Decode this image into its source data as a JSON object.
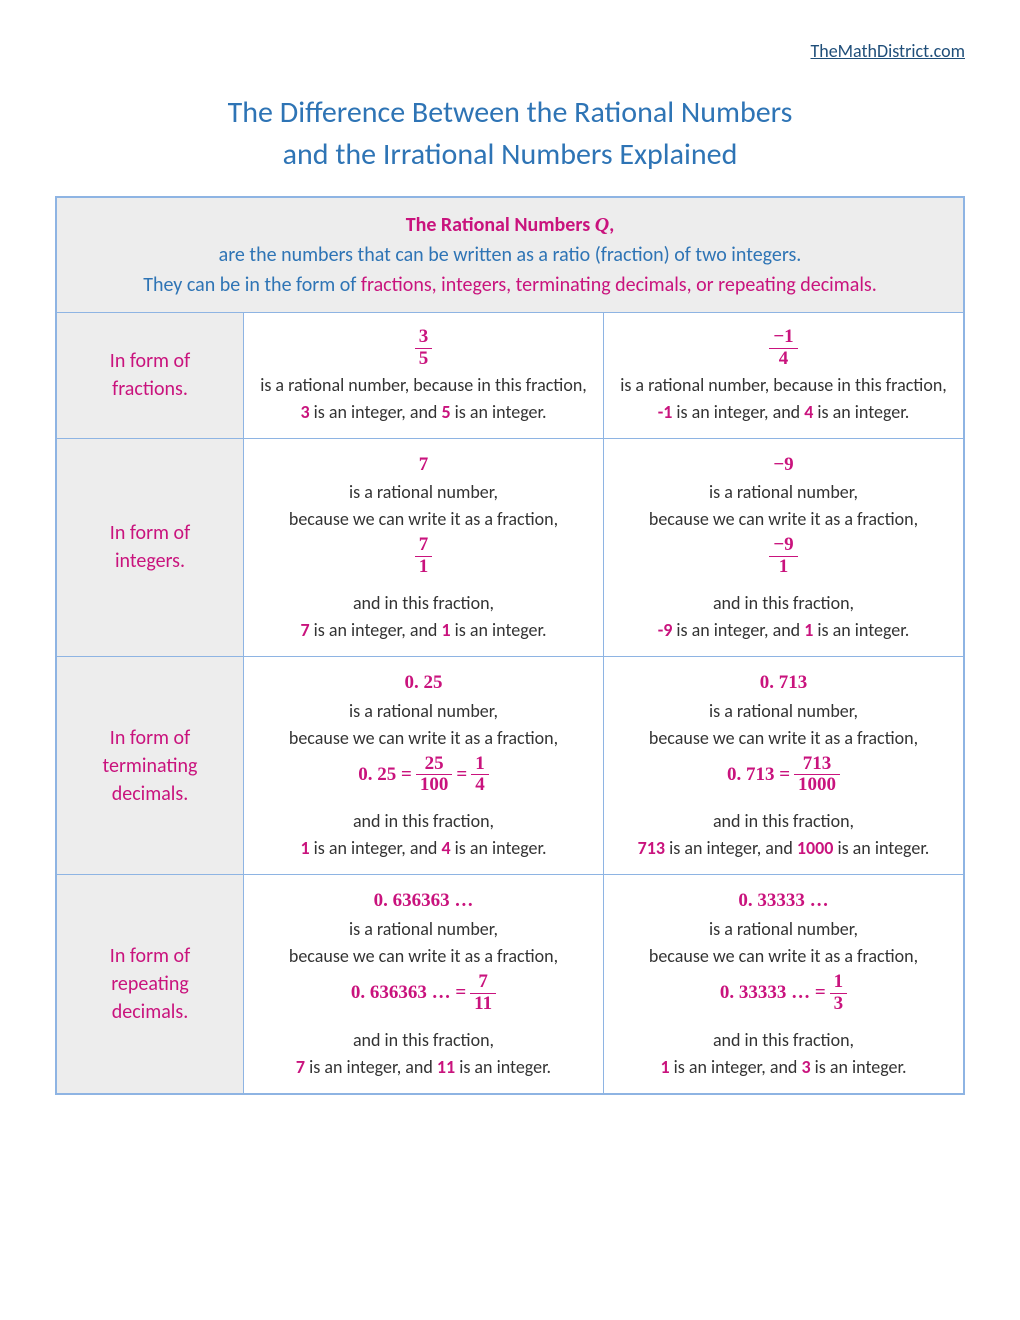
{
  "site_link": "TheMathDistrict.com",
  "title_line1": "The Difference Between the Rational Numbers",
  "title_line2": "and the Irrational Numbers Explained",
  "header": {
    "lead": "The Rational Numbers ",
    "q": "Q",
    "comma": ",",
    "line2": "are the numbers that can be written as a ratio (fraction) of two integers.",
    "line3a": "They can be in the form of ",
    "line3b": "fractions, integers, terminating decimals, or repeating decimals."
  },
  "rows": {
    "fractions": {
      "label1": "In form of",
      "label2": "fractions.",
      "left": {
        "num": "3",
        "den": "5",
        "t1": "is a rational number, because in this fraction,",
        "a": "3",
        "mid": " is an integer, and ",
        "b": "5",
        "end": " is an integer."
      },
      "right": {
        "num": "−1",
        "den": "4",
        "t1": "is a rational number, because in this fraction,",
        "a": "-1",
        "mid": " is an integer, and ",
        "b": "4",
        "end": " is an integer."
      }
    },
    "integers": {
      "label1": "In form of",
      "label2": "integers.",
      "left": {
        "val": "7",
        "t1": "is a rational number,",
        "t2": "because we can write it as a fraction,",
        "num": "7",
        "den": "1",
        "t3": "and in this fraction,",
        "a": "7",
        "mid": " is an integer, and ",
        "b": "1",
        "end": " is an integer."
      },
      "right": {
        "val": "−9",
        "t1": "is a rational number,",
        "t2": "because we can write it as a fraction,",
        "num": "−9",
        "den": "1",
        "t3": "and in this fraction,",
        "a": "-9",
        "mid": " is an integer, and ",
        "b": "1",
        "end": " is an integer."
      }
    },
    "terminating": {
      "label1": "In form of",
      "label2": "terminating",
      "label3": "decimals.",
      "left": {
        "val": "0. 25",
        "t1": "is a rational number,",
        "t2": "because we can write it as a fraction,",
        "eq_lhs": "0. 25 =",
        "n1": "25",
        "d1": "100",
        "eq2": "=",
        "n2": "1",
        "d2": "4",
        "t3": "and in this fraction,",
        "a": "1",
        "mid": " is an integer, and ",
        "b": "4",
        "end": " is an integer."
      },
      "right": {
        "val": "0. 713",
        "t1": "is a rational number,",
        "t2": "because we can write it as a fraction,",
        "eq_lhs": "0. 713 =",
        "n1": "713",
        "d1": "1000",
        "t3": "and in this fraction,",
        "a": "713",
        "mid": " is an integer, and ",
        "b": "1000",
        "end": " is an integer."
      }
    },
    "repeating": {
      "label1": "In form of",
      "label2": "repeating",
      "label3": "decimals.",
      "left": {
        "val": "0. 636363 …",
        "t1": "is a rational number,",
        "t2": "because we can write it as a fraction,",
        "eq_lhs": "0. 636363 … =",
        "n1": "7",
        "d1": "11",
        "t3": "and in this fraction,",
        "a": "7",
        "mid": " is an integer, and ",
        "b": "11",
        "end": " is an integer."
      },
      "right": {
        "val": "0. 33333 …",
        "t1": "is a rational number,",
        "t2": "because we can write it as a fraction,",
        "eq_lhs": "0. 33333 … =",
        "n1": "1",
        "d1": "3",
        "t3": "and in this fraction,",
        "a": "1",
        "mid": " is an integer, and ",
        "b": "3",
        "end": " is an integer."
      }
    }
  },
  "colors": {
    "border": "#8eb4e3",
    "title": "#2e74b5",
    "pink": "#c9137d",
    "header_bg": "#ededed"
  }
}
